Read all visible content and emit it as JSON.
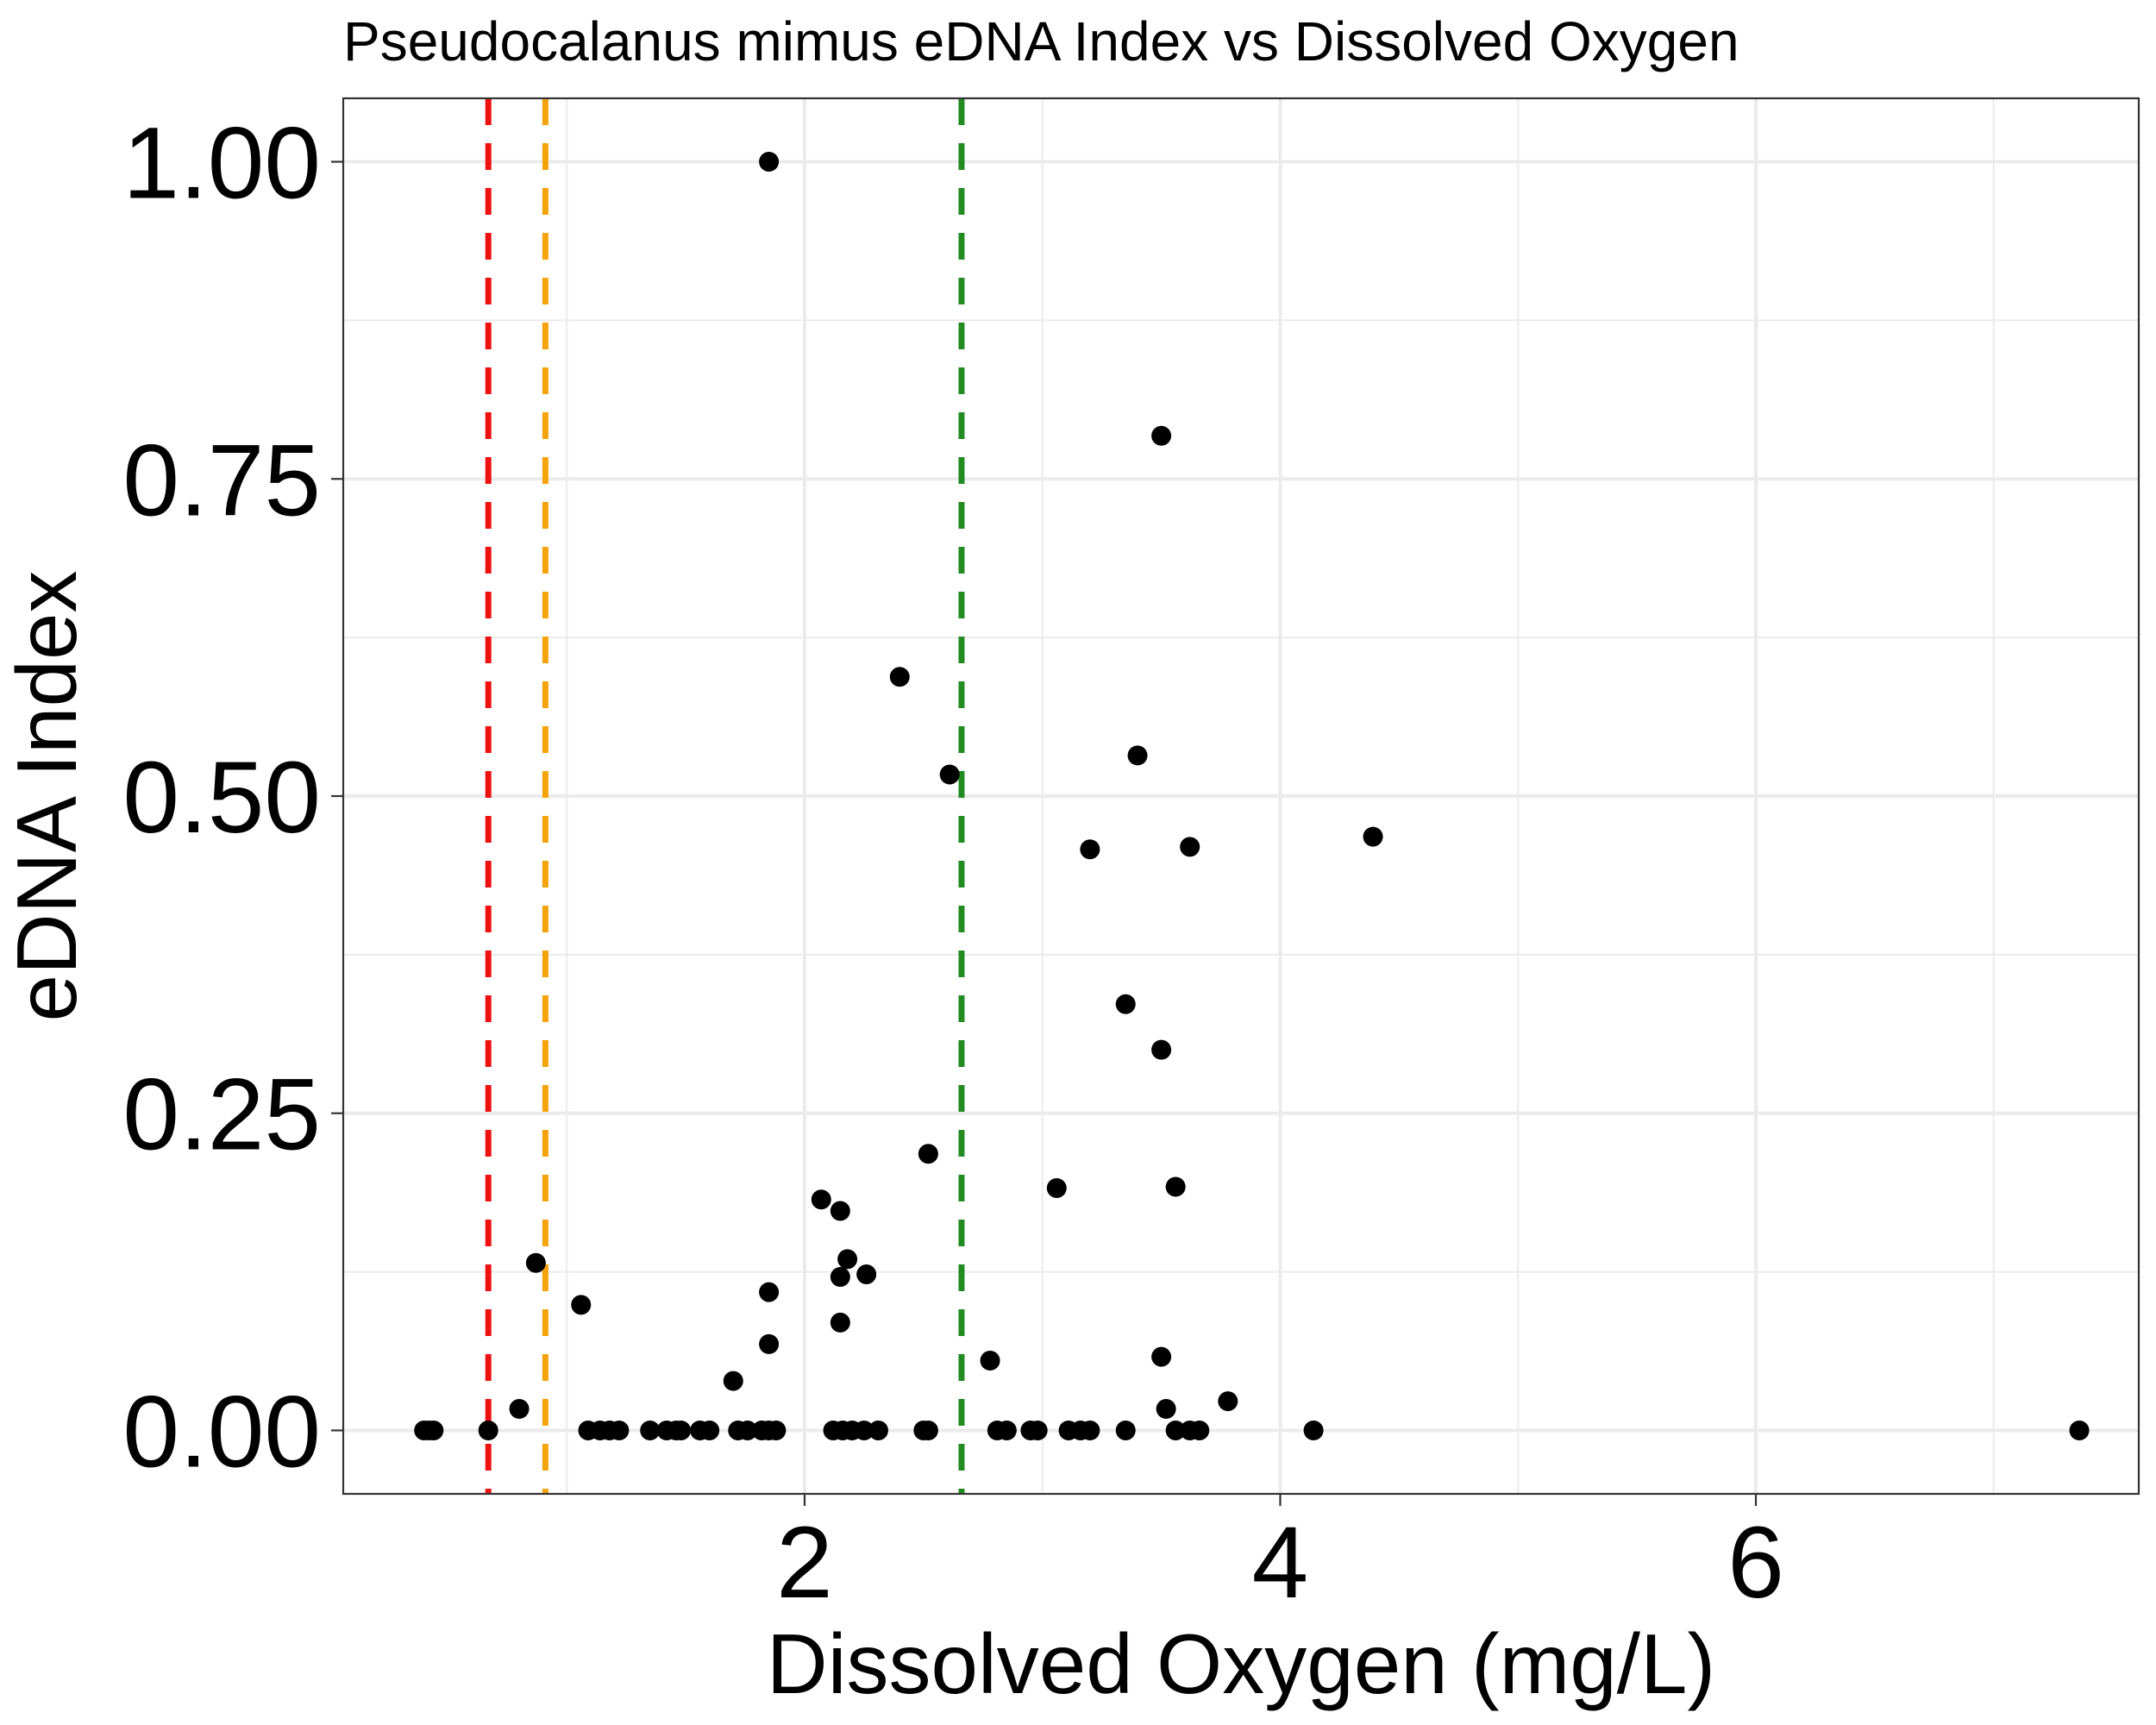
{
  "chart_data": {
    "type": "scatter",
    "title": "Pseudocalanus mimus eDNA Index vs Dissolved Oxygen",
    "xlabel": "Dissolved Oxygen (mg/L)",
    "ylabel": "eDNA Index",
    "xlim": [
      0.06,
      7.61
    ],
    "ylim": [
      -0.05,
      1.05
    ],
    "x_ticks": [
      2,
      4,
      6
    ],
    "x_tick_labels": [
      "2",
      "4",
      "6"
    ],
    "y_ticks": [
      0,
      0.25,
      0.5,
      0.75,
      1.0
    ],
    "y_tick_labels": [
      "0.00",
      "0.25",
      "0.50",
      "0.75",
      "1.00"
    ],
    "grid": true,
    "point_color": "#000000",
    "reference_lines": [
      {
        "x": 0.67,
        "color": "#ee1111",
        "style": "dashed"
      },
      {
        "x": 0.91,
        "color": "#f5a30a",
        "style": "dashed"
      },
      {
        "x": 2.66,
        "color": "#228b22",
        "style": "dashed"
      }
    ],
    "points": [
      {
        "x": 0.4,
        "y": 0.0
      },
      {
        "x": 0.42,
        "y": 0.0
      },
      {
        "x": 0.44,
        "y": 0.0
      },
      {
        "x": 0.67,
        "y": 0.0
      },
      {
        "x": 0.8,
        "y": 0.017
      },
      {
        "x": 0.87,
        "y": 0.132
      },
      {
        "x": 1.06,
        "y": 0.099
      },
      {
        "x": 1.09,
        "y": 0.0
      },
      {
        "x": 1.14,
        "y": 0.0
      },
      {
        "x": 1.18,
        "y": 0.0
      },
      {
        "x": 1.22,
        "y": 0.0
      },
      {
        "x": 1.35,
        "y": 0.0
      },
      {
        "x": 1.42,
        "y": 0.0
      },
      {
        "x": 1.46,
        "y": 0.0
      },
      {
        "x": 1.48,
        "y": 0.0
      },
      {
        "x": 1.56,
        "y": 0.0
      },
      {
        "x": 1.6,
        "y": 0.0
      },
      {
        "x": 1.7,
        "y": 0.039
      },
      {
        "x": 1.72,
        "y": 0.0
      },
      {
        "x": 1.76,
        "y": 0.0
      },
      {
        "x": 1.82,
        "y": 0.0
      },
      {
        "x": 1.85,
        "y": 1.0
      },
      {
        "x": 1.85,
        "y": 0.109
      },
      {
        "x": 1.85,
        "y": 0.068
      },
      {
        "x": 1.85,
        "y": 0.0
      },
      {
        "x": 1.88,
        "y": 0.0
      },
      {
        "x": 2.07,
        "y": 0.182
      },
      {
        "x": 2.12,
        "y": 0.0
      },
      {
        "x": 2.15,
        "y": 0.173
      },
      {
        "x": 2.15,
        "y": 0.121
      },
      {
        "x": 2.15,
        "y": 0.085
      },
      {
        "x": 2.16,
        "y": 0.0
      },
      {
        "x": 2.18,
        "y": 0.135
      },
      {
        "x": 2.2,
        "y": 0.0
      },
      {
        "x": 2.25,
        "y": 0.0
      },
      {
        "x": 2.26,
        "y": 0.123
      },
      {
        "x": 2.31,
        "y": 0.0
      },
      {
        "x": 2.4,
        "y": 0.594
      },
      {
        "x": 2.5,
        "y": 0.0
      },
      {
        "x": 2.52,
        "y": 0.0
      },
      {
        "x": 2.52,
        "y": 0.218
      },
      {
        "x": 2.61,
        "y": 0.517
      },
      {
        "x": 2.78,
        "y": 0.055
      },
      {
        "x": 2.81,
        "y": 0.0
      },
      {
        "x": 2.85,
        "y": 0.0
      },
      {
        "x": 2.95,
        "y": 0.0
      },
      {
        "x": 2.98,
        "y": 0.0
      },
      {
        "x": 3.06,
        "y": 0.191
      },
      {
        "x": 3.11,
        "y": 0.0
      },
      {
        "x": 3.16,
        "y": 0.0
      },
      {
        "x": 3.2,
        "y": 0.0
      },
      {
        "x": 3.2,
        "y": 0.458
      },
      {
        "x": 3.35,
        "y": 0.0
      },
      {
        "x": 3.35,
        "y": 0.336
      },
      {
        "x": 3.4,
        "y": 0.532
      },
      {
        "x": 3.5,
        "y": 0.784
      },
      {
        "x": 3.5,
        "y": 0.3
      },
      {
        "x": 3.5,
        "y": 0.058
      },
      {
        "x": 3.52,
        "y": 0.017
      },
      {
        "x": 3.56,
        "y": 0.192
      },
      {
        "x": 3.56,
        "y": 0.0
      },
      {
        "x": 3.62,
        "y": 0.46
      },
      {
        "x": 3.62,
        "y": 0.0
      },
      {
        "x": 3.66,
        "y": 0.0
      },
      {
        "x": 3.78,
        "y": 0.023
      },
      {
        "x": 4.14,
        "y": 0.0
      },
      {
        "x": 4.39,
        "y": 0.468
      },
      {
        "x": 7.36,
        "y": 0.0
      }
    ]
  }
}
